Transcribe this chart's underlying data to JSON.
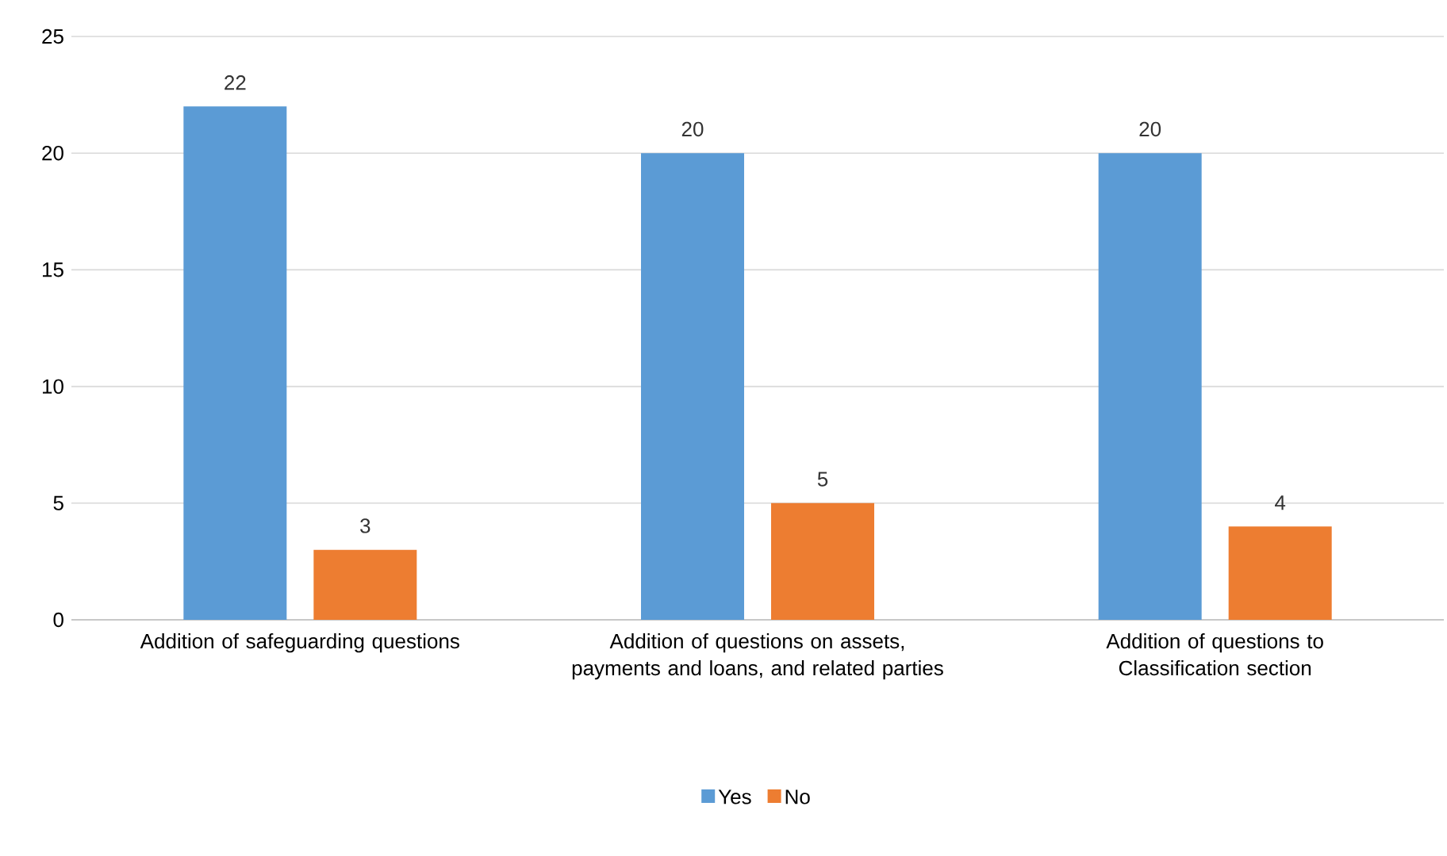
{
  "chart_data": {
    "type": "bar",
    "categories": [
      "Addition of safeguarding questions",
      "Addition of questions on assets, payments and loans, and related parties",
      "Addition of questions to Classification section"
    ],
    "series": [
      {
        "name": "Yes",
        "color": "#5b9bd5",
        "values": [
          22,
          20,
          20
        ]
      },
      {
        "name": "No",
        "color": "#ed7d31",
        "values": [
          3,
          5,
          4
        ]
      }
    ],
    "ylim": [
      0,
      25
    ],
    "yticks": [
      0,
      5,
      10,
      15,
      20,
      25
    ],
    "grid": "y",
    "legend": "bottom",
    "data_labels": true
  }
}
